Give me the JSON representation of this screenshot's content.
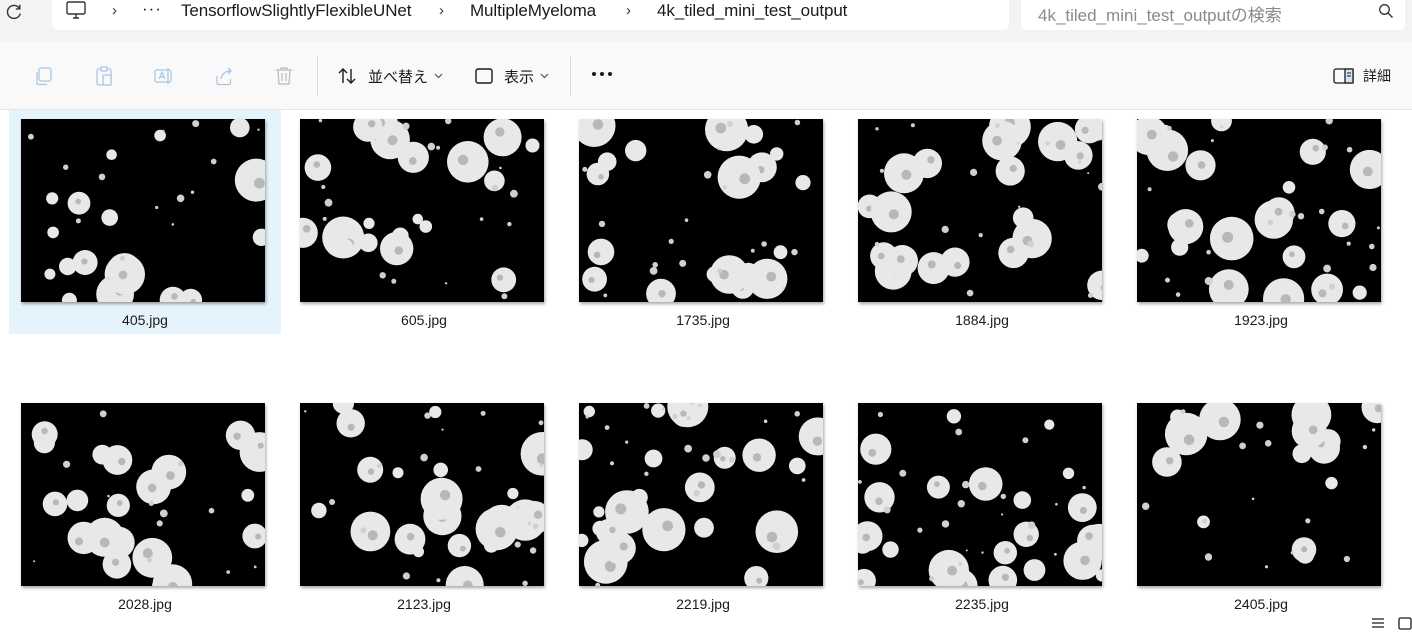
{
  "address_bar": {
    "breadcrumbs": [
      "TensorflowSlightlyFlexibleUNet",
      "MultipleMyeloma",
      "4k_tiled_mini_test_output"
    ],
    "overflow_glyph": "···",
    "separator_glyph": "›"
  },
  "search": {
    "placeholder": "4k_tiled_mini_test_outputの検索"
  },
  "toolbar": {
    "sort_label": "並べ替え",
    "view_label": "表示",
    "more_glyph": "···",
    "details_label": "詳細"
  },
  "icons": {
    "refresh": "refresh-icon",
    "computer": "computer-icon",
    "search": "search-icon",
    "copy": "copy-icon",
    "paste": "paste-icon",
    "rename": "rename-icon",
    "share": "share-icon",
    "delete": "delete-icon",
    "sort": "sort-icon",
    "view": "view-icon",
    "details": "details-pane-icon",
    "list_view": "list-view-icon",
    "tile_view": "tile-view-icon"
  },
  "colors": {
    "selection": "#e5f3fd",
    "toolbar_bg": "#f9f9f9",
    "addr_bg": "#f3f3f3",
    "thumb_bg": "#000000",
    "cell": "#e8e8e8"
  },
  "files": [
    {
      "name": "405.jpg",
      "selected": true
    },
    {
      "name": "605.jpg",
      "selected": false
    },
    {
      "name": "1735.jpg",
      "selected": false
    },
    {
      "name": "1884.jpg",
      "selected": false
    },
    {
      "name": "1923.jpg",
      "selected": false
    },
    {
      "name": "2028.jpg",
      "selected": false
    },
    {
      "name": "2123.jpg",
      "selected": false
    },
    {
      "name": "2219.jpg",
      "selected": false
    },
    {
      "name": "2235.jpg",
      "selected": false
    },
    {
      "name": "2405.jpg",
      "selected": false
    }
  ]
}
